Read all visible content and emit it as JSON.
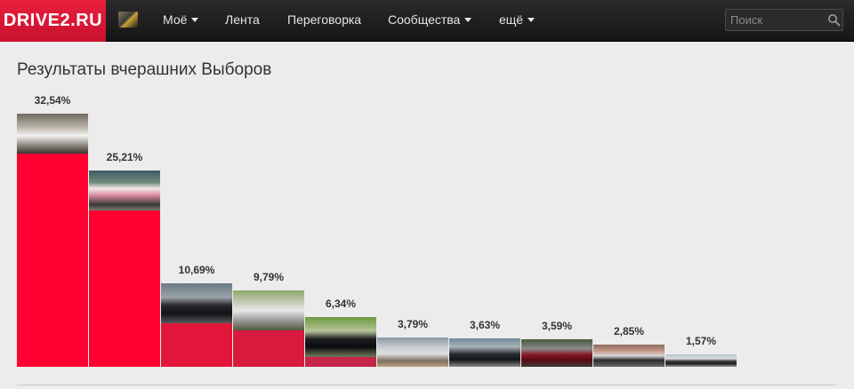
{
  "header": {
    "logo": "DRIVE2.RU",
    "nav": [
      {
        "label": "Моё",
        "caret": true
      },
      {
        "label": "Лента",
        "caret": false
      },
      {
        "label": "Переговорка",
        "caret": false
      },
      {
        "label": "Сообщества",
        "caret": true
      },
      {
        "label": "ещё",
        "caret": true
      }
    ],
    "search_placeholder": "Поиск"
  },
  "main": {
    "title": "Результаты вчерашних Выборов"
  },
  "chart_data": {
    "type": "bar",
    "categories": [
      "",
      "",
      "",
      "",
      "",
      "",
      "",
      "",
      "",
      ""
    ],
    "values": [
      32.54,
      25.21,
      10.69,
      9.79,
      6.34,
      3.79,
      3.63,
      3.59,
      2.85,
      1.57
    ],
    "labels": [
      "32,54%",
      "25,21%",
      "10,69%",
      "9,79%",
      "6,34%",
      "3,79%",
      "3,63%",
      "3,59%",
      "2,85%",
      "1,57%"
    ],
    "colors": [
      "#ff0030",
      "#ff0030",
      "#e2163a",
      "#d71a3d",
      "#c42548",
      "#a8385a",
      "#9a3f63",
      "#8b4a6c",
      "#6f5a80",
      "#606a95"
    ],
    "title": "Результаты вчерашних Выборов"
  }
}
